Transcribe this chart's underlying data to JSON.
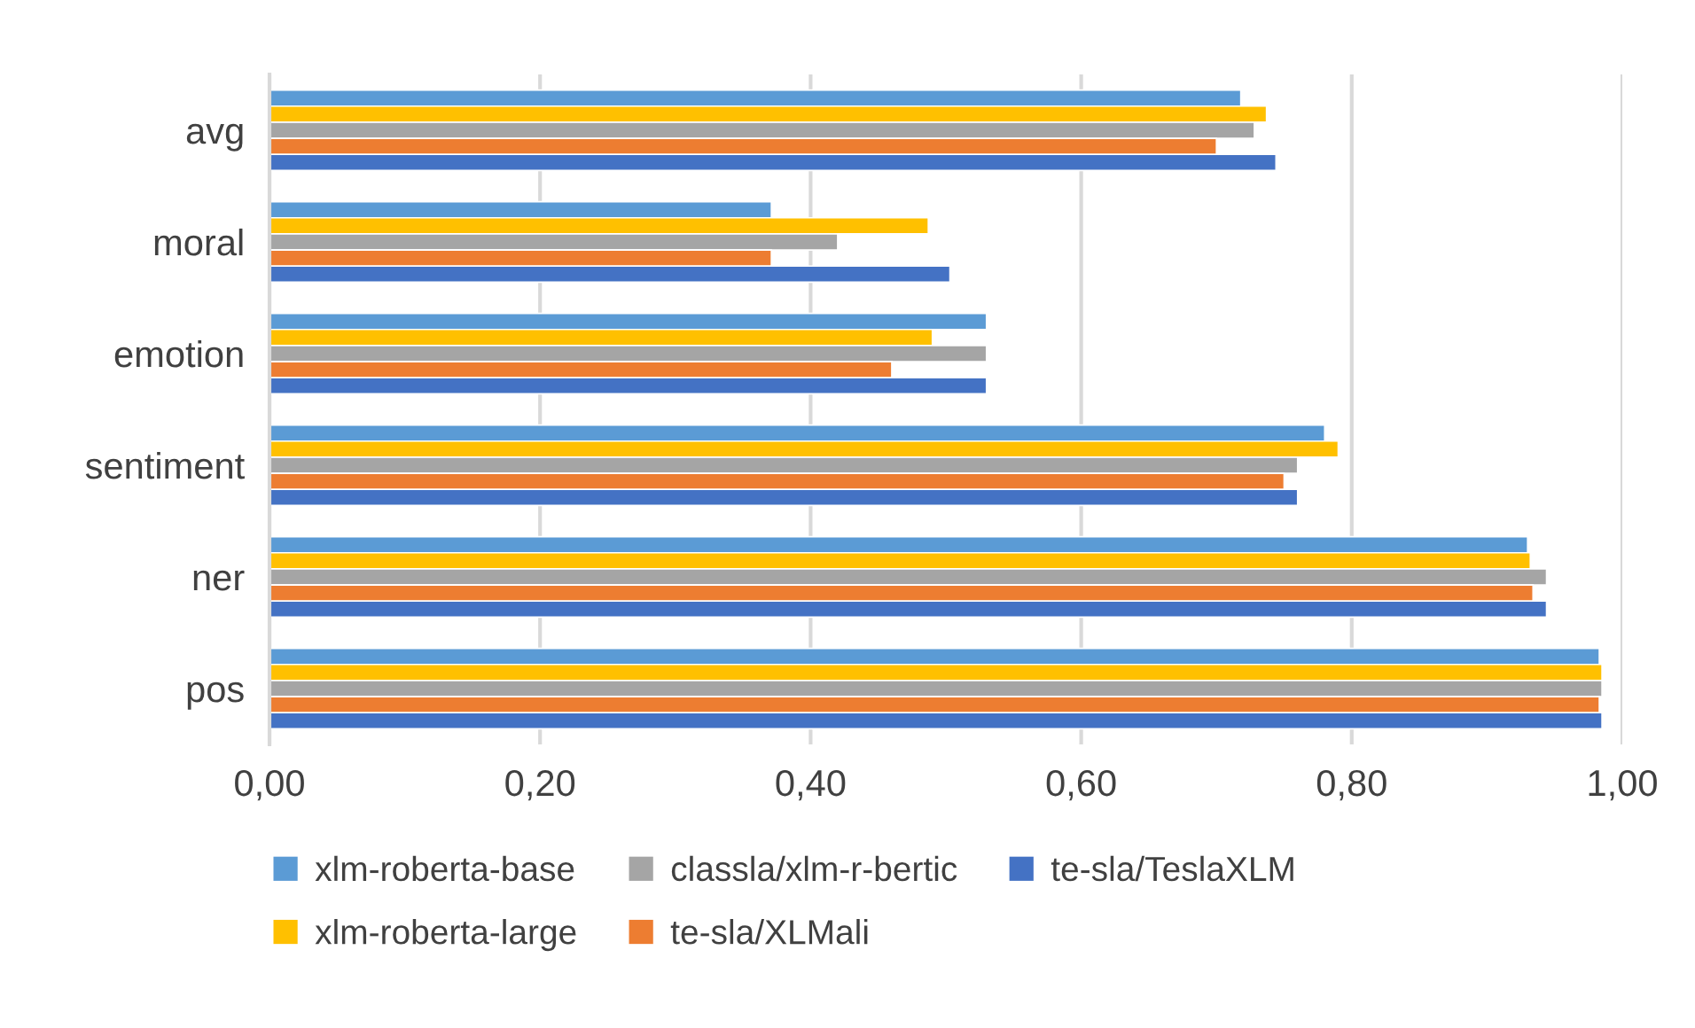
{
  "chart_data": {
    "type": "bar",
    "orientation": "horizontal",
    "categories": [
      "avg",
      "moral",
      "emotion",
      "sentiment",
      "ner",
      "pos"
    ],
    "series": [
      {
        "name": "xlm-roberta-base",
        "color": "#5b9bd5",
        "values": [
          0.718,
          0.371,
          0.53,
          0.78,
          0.93,
          0.983
        ]
      },
      {
        "name": "xlm-roberta-large",
        "color": "#ffc000",
        "values": [
          0.737,
          0.487,
          0.49,
          0.79,
          0.932,
          0.985
        ]
      },
      {
        "name": "classla/xlm-r-bertic",
        "color": "#a5a5a5",
        "values": [
          0.728,
          0.42,
          0.53,
          0.76,
          0.944,
          0.985
        ]
      },
      {
        "name": "te-sla/XLMali",
        "color": "#ed7d31",
        "values": [
          0.7,
          0.371,
          0.46,
          0.75,
          0.934,
          0.983
        ]
      },
      {
        "name": "te-sla/TeslaXLM",
        "color": "#4472c4",
        "values": [
          0.744,
          0.503,
          0.53,
          0.76,
          0.944,
          0.985
        ]
      }
    ],
    "xlim": [
      0,
      1
    ],
    "xticks": [
      {
        "value": 0,
        "label": "0,00"
      },
      {
        "value": 0.2,
        "label": "0,20"
      },
      {
        "value": 0.4,
        "label": "0,40"
      },
      {
        "value": 0.6,
        "label": "0,60"
      },
      {
        "value": 0.8,
        "label": "0,80"
      },
      {
        "value": 1,
        "label": "1,00"
      }
    ],
    "grid": "x",
    "legend": "bottom"
  }
}
